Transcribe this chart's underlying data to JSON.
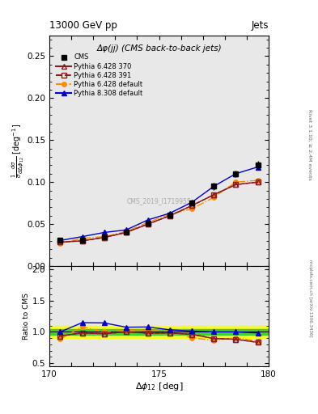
{
  "title_top": "13000 GeV pp",
  "title_right": "Jets",
  "plot_title": "Δφ(jj) (CMS back-to-back jets)",
  "ylabel_main": "$\\frac{1}{\\sigma}\\frac{d\\sigma}{d\\Delta\\phi_{12}}$ [deg$^{-1}$]",
  "ylabel_ratio": "Ratio to CMS",
  "xlabel": "$\\Delta\\phi_{12}$ [deg]",
  "right_label": "Rivet 3.1.10; ≥ 2.4M events",
  "bottom_right_label": "mcplots.cern.ch [arXiv:1306.3436]",
  "watermark": "CMS_2019_I1719955",
  "x_values": [
    170.5,
    171.5,
    172.5,
    173.5,
    174.5,
    175.5,
    176.5,
    177.5,
    178.5,
    179.5
  ],
  "cms_y": [
    0.0305,
    0.0305,
    0.035,
    0.04,
    0.051,
    0.061,
    0.075,
    0.095,
    0.11,
    0.12
  ],
  "cms_yerr": [
    0.0015,
    0.0015,
    0.002,
    0.002,
    0.002,
    0.003,
    0.003,
    0.004,
    0.004,
    0.005
  ],
  "p6_370_y": [
    0.0285,
    0.03,
    0.034,
    0.04,
    0.05,
    0.06,
    0.072,
    0.085,
    0.097,
    0.1
  ],
  "p6_391_y": [
    0.0285,
    0.03,
    0.034,
    0.04,
    0.05,
    0.06,
    0.072,
    0.085,
    0.097,
    0.1
  ],
  "p6_def_y": [
    0.027,
    0.033,
    0.035,
    0.041,
    0.052,
    0.062,
    0.068,
    0.082,
    0.1,
    0.102
  ],
  "p8_308_y": [
    0.0305,
    0.035,
    0.04,
    0.043,
    0.055,
    0.063,
    0.076,
    0.095,
    0.11,
    0.118
  ],
  "cms_color": "#000000",
  "p6_370_color": "#8b1a1a",
  "p6_391_color": "#8b1a1a",
  "p6_def_color": "#ff8c00",
  "p8_308_color": "#0000cc",
  "ylim_main": [
    0.0,
    0.275
  ],
  "ylim_ratio": [
    0.45,
    2.05
  ],
  "xlim": [
    170.0,
    180.0
  ],
  "main_yticks": [
    0.0,
    0.05,
    0.1,
    0.15,
    0.2,
    0.25
  ],
  "ratio_yticks": [
    0.5,
    1.0,
    1.5,
    2.0
  ],
  "ratio_band_green": 0.05,
  "ratio_band_yellow": 0.1,
  "bg_color": "#e8e8e8"
}
